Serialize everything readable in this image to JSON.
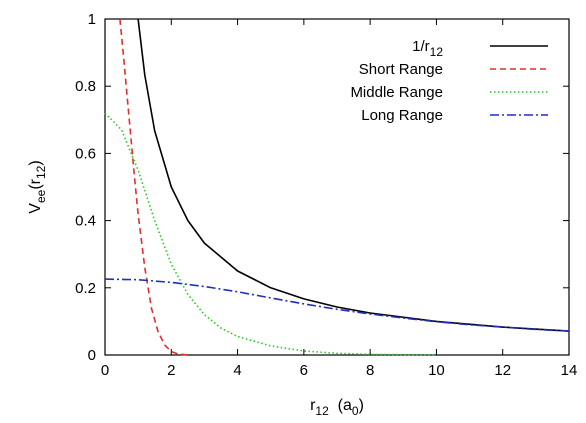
{
  "chart_data": {
    "type": "line",
    "xlabel": {
      "main": "r",
      "sub": "12",
      "unit_open": "  (a",
      "unit_sub": "0",
      "unit_close": ")"
    },
    "ylabel": {
      "main": "V",
      "sub": "ee",
      "paren_open": "(r",
      "paren_sub": "12",
      "paren_close": ")"
    },
    "xlim": [
      0,
      14
    ],
    "ylim": [
      0,
      1
    ],
    "xticks": [
      "0",
      "2",
      "4",
      "6",
      "8",
      "10",
      "12",
      "14"
    ],
    "yticks": [
      "0",
      "0.2",
      "0.4",
      "0.6",
      "0.8",
      "1"
    ],
    "grid": false,
    "legend_position": "top-right",
    "series": [
      {
        "name": "1/r12",
        "label_main": "1/r",
        "label_sub": "12",
        "color": "#000000",
        "dash": "solid",
        "x": [
          1.0,
          1.2,
          1.5,
          2.0,
          2.5,
          3.0,
          4.0,
          5.0,
          6.0,
          7.0,
          8.0,
          10.0,
          12.0,
          14.0
        ],
        "y": [
          1.0,
          0.833,
          0.667,
          0.5,
          0.4,
          0.333,
          0.25,
          0.2,
          0.167,
          0.143,
          0.125,
          0.1,
          0.083,
          0.071
        ]
      },
      {
        "name": "Short Range",
        "label_main": "Short Range",
        "label_sub": "",
        "color": "#e0302a",
        "dash": "dashed",
        "x": [
          0.45,
          0.55,
          0.65,
          0.75,
          0.9,
          1.0,
          1.2,
          1.4,
          1.6,
          1.8,
          2.0,
          2.2,
          2.5
        ],
        "y": [
          1.0,
          0.9,
          0.79,
          0.68,
          0.52,
          0.42,
          0.26,
          0.14,
          0.07,
          0.03,
          0.01,
          0.003,
          0.0
        ]
      },
      {
        "name": "Middle Range",
        "label_main": "Middle Range",
        "label_sub": "",
        "color": "#22cc22",
        "dash": "dotted",
        "x": [
          0.0,
          0.5,
          1.0,
          1.5,
          2.0,
          2.5,
          3.0,
          3.5,
          4.0,
          5.0,
          6.0,
          7.0,
          8.0,
          10.0
        ],
        "y": [
          0.72,
          0.67,
          0.55,
          0.4,
          0.27,
          0.18,
          0.12,
          0.08,
          0.055,
          0.027,
          0.012,
          0.005,
          0.002,
          0.0
        ]
      },
      {
        "name": "Long Range",
        "label_main": "Long Range",
        "label_sub": "",
        "color": "#1f2fbf",
        "dash": "dashdot",
        "x": [
          0.0,
          1.0,
          2.0,
          3.0,
          4.0,
          5.0,
          6.0,
          7.0,
          8.0,
          9.0,
          10.0,
          11.0,
          12.0,
          13.0,
          14.0
        ],
        "y": [
          0.226,
          0.224,
          0.216,
          0.204,
          0.188,
          0.17,
          0.152,
          0.136,
          0.122,
          0.11,
          0.099,
          0.09,
          0.083,
          0.076,
          0.071
        ]
      }
    ]
  }
}
